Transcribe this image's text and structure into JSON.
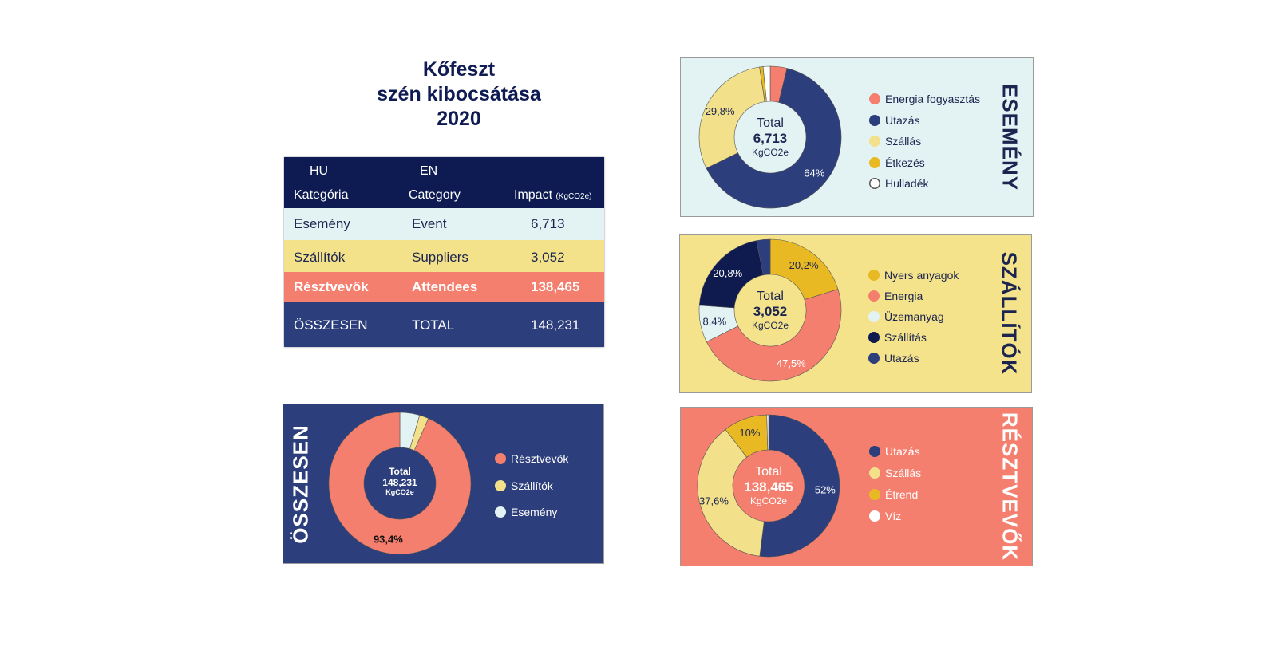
{
  "title": {
    "line1": "Kőfeszt",
    "line2": "szén kibocsátása",
    "line3": "2020"
  },
  "table": {
    "header": {
      "hu": "HU",
      "en": "EN",
      "col1": "Kategória",
      "col2": "Category",
      "col3": "Impact",
      "col3_unit": "(KgCO2e)"
    },
    "rows": [
      {
        "hu": "Esemény",
        "en": "Event",
        "impact": "6,713"
      },
      {
        "hu": "Szállítók",
        "en": "Suppliers",
        "impact": "3,052"
      },
      {
        "hu": "Résztvevők",
        "en": "Attendees",
        "impact": "138,465"
      },
      {
        "hu": "ÖSSZESEN",
        "en": "TOTAL",
        "impact": "148,231"
      }
    ]
  },
  "colors": {
    "navy": "#2c3e7b",
    "dark_navy": "#0f1b4f",
    "coral": "#f47f6e",
    "yellow": "#f2e08a",
    "gold": "#e8b923",
    "light": "#e3f3f4",
    "white": "#ffffff"
  },
  "chart_data": [
    {
      "id": "esemeny",
      "type": "pie",
      "title": "ESEMÉNY",
      "center": {
        "label": "Total",
        "value": "6,713",
        "unit": "KgCO2e"
      },
      "slices": [
        {
          "name": "Energia fogyasztás",
          "value": 3.8,
          "color": "#f47f6e",
          "label": ""
        },
        {
          "name": "Utazás",
          "value": 64,
          "color": "#2c3e7b",
          "label": "64%",
          "label_color": "#ffffff"
        },
        {
          "name": "Szállás",
          "value": 29.8,
          "color": "#f2e08a",
          "label": "29,8%",
          "label_color": "#1b2550"
        },
        {
          "name": "Étkezés",
          "value": 0.8,
          "color": "#e8b923",
          "label": ""
        },
        {
          "name": "Hulladék",
          "value": 1.6,
          "color": "#ffffff",
          "label": ""
        }
      ]
    },
    {
      "id": "szallitok",
      "type": "pie",
      "title": "SZÁLLÍTÓK",
      "center": {
        "label": "Total",
        "value": "3,052",
        "unit": "KgCO2e"
      },
      "slices": [
        {
          "name": "Nyers anyagok",
          "value": 20.2,
          "color": "#e8b923",
          "label": "20,2%",
          "label_color": "#1b2550"
        },
        {
          "name": "Energia",
          "value": 47.5,
          "color": "#f47f6e",
          "label": "47,5%",
          "label_color": "#ffffff"
        },
        {
          "name": "Üzemanyag",
          "value": 8.4,
          "color": "#e3f3f4",
          "label": "8,4%",
          "label_color": "#1b2550"
        },
        {
          "name": "Szállítás",
          "value": 20.8,
          "color": "#0f1b4f",
          "label": "20,8%",
          "label_color": "#ffffff"
        },
        {
          "name": "Utazás",
          "value": 3.1,
          "color": "#2c3e7b",
          "label": ""
        }
      ]
    },
    {
      "id": "resztvevok",
      "type": "pie",
      "title": "RÉSZTVEVŐK",
      "center": {
        "label": "Total",
        "value": "138,465",
        "unit": "KgCO2e"
      },
      "slices": [
        {
          "name": "Utazás",
          "value": 52,
          "color": "#2c3e7b",
          "label": "52%",
          "label_color": "#ffffff"
        },
        {
          "name": "Szállás",
          "value": 37.6,
          "color": "#f2e08a",
          "label": "37,6%",
          "label_color": "#1b2550"
        },
        {
          "name": "Étrend",
          "value": 10,
          "color": "#e8b923",
          "label": "10%",
          "label_color": "#1b2550"
        },
        {
          "name": "Víz",
          "value": 0.4,
          "color": "#ffffff",
          "label": ""
        }
      ]
    },
    {
      "id": "osszesen",
      "type": "pie",
      "title": "ÖSSZESEN",
      "center": {
        "label": "Total",
        "value": "148,231",
        "unit": "KgCO2e"
      },
      "slices": [
        {
          "name": "Esemény",
          "value": 4.5,
          "color": "#e3f3f4",
          "label": ""
        },
        {
          "name": "Szállítók",
          "value": 2.1,
          "color": "#f2e08a",
          "label": ""
        },
        {
          "name": "Résztvevők",
          "value": 93.4,
          "color": "#f47f6e",
          "label": "93,4%",
          "label_color": "#111111"
        }
      ],
      "legend_order": [
        2,
        1,
        0
      ]
    }
  ]
}
